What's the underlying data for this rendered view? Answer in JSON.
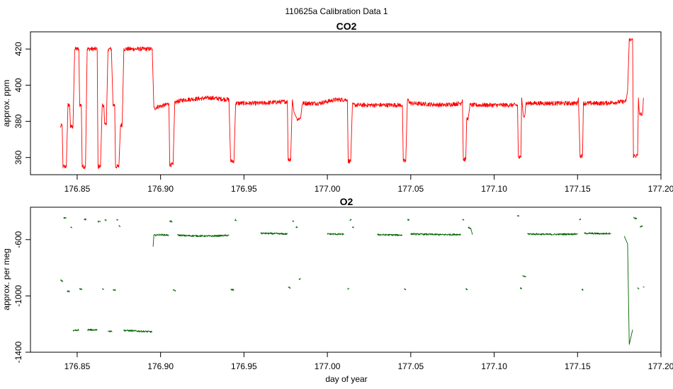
{
  "suptitle": "110625a   Calibration Data 1",
  "colors": {
    "co2": "#ff0000",
    "o2": "#006400"
  },
  "chart_data": [
    {
      "type": "line",
      "title": "CO2",
      "xlabel": "",
      "ylabel": "approx. ppm",
      "xlim": [
        176.822,
        177.2
      ],
      "ylim": [
        350.5,
        429.5
      ],
      "xticks": [
        176.85,
        176.9,
        176.95,
        177.0,
        177.05,
        177.1,
        177.15,
        177.2
      ],
      "xtick_labels": [
        "176.85",
        "176.90",
        "176.95",
        "177.00",
        "177.05",
        "177.10",
        "177.15",
        "177.20"
      ],
      "yticks": [
        360,
        380,
        400,
        420
      ],
      "ytick_labels": [
        "360",
        "380",
        "400",
        "420"
      ],
      "series": [
        {
          "color": "#ff0000",
          "noise": 1.2,
          "segments": [
            [
              [
                176.84,
                377
              ],
              [
                176.841,
                378
              ],
              [
                176.8415,
                355
              ],
              [
                176.8435,
                355
              ],
              [
                176.8445,
                389
              ],
              [
                176.8455,
                389
              ],
              [
                176.846,
                377
              ],
              [
                176.8475,
                377
              ],
              [
                176.8485,
                420
              ],
              [
                176.851,
                420
              ],
              [
                176.8515,
                389
              ],
              [
                176.8525,
                389
              ],
              [
                176.853,
                355
              ],
              [
                176.855,
                355
              ],
              [
                176.856,
                420
              ],
              [
                176.862,
                420
              ],
              [
                176.8625,
                355
              ],
              [
                176.864,
                355
              ],
              [
                176.865,
                389
              ],
              [
                176.866,
                389
              ],
              [
                176.8665,
                378
              ],
              [
                176.8675,
                378
              ],
              [
                176.8685,
                420
              ],
              [
                176.8705,
                420
              ],
              [
                176.8715,
                389
              ],
              [
                176.8725,
                389
              ],
              [
                176.873,
                355
              ],
              [
                176.875,
                355
              ],
              [
                176.876,
                378
              ],
              [
                176.877,
                378
              ],
              [
                176.878,
                420
              ],
              [
                176.895,
                420
              ],
              [
                176.896,
                387
              ],
              [
                176.898,
                388
              ],
              [
                176.903,
                389
              ],
              [
                176.905,
                390
              ],
              [
                176.9055,
                356
              ],
              [
                176.9075,
                356
              ],
              [
                176.9085,
                390
              ],
              [
                176.91,
                391
              ],
              [
                176.915,
                392
              ],
              [
                176.93,
                393
              ],
              [
                176.941,
                392
              ],
              [
                176.942,
                358
              ],
              [
                176.944,
                358
              ],
              [
                176.945,
                390
              ],
              [
                176.96,
                390
              ],
              [
                176.976,
                391
              ],
              [
                176.9765,
                359
              ],
              [
                176.978,
                359
              ],
              [
                176.979,
                392
              ],
              [
                176.98,
                385
              ],
              [
                176.982,
                381
              ],
              [
                176.984,
                382
              ],
              [
                176.985,
                390
              ],
              [
                176.995,
                390
              ],
              [
                177.005,
                392
              ],
              [
                177.012,
                392
              ],
              [
                177.0125,
                358
              ],
              [
                177.014,
                358
              ],
              [
                177.015,
                389
              ],
              [
                177.03,
                389
              ],
              [
                177.045,
                389
              ],
              [
                177.0455,
                358
              ],
              [
                177.047,
                358
              ],
              [
                177.048,
                392
              ],
              [
                177.05,
                390
              ],
              [
                177.07,
                389
              ],
              [
                177.08,
                390
              ],
              [
                177.081,
                392
              ],
              [
                177.0815,
                359
              ],
              [
                177.083,
                359
              ],
              [
                177.0835,
                381
              ],
              [
                177.0845,
                382
              ],
              [
                177.0855,
                389
              ],
              [
                177.1,
                389
              ],
              [
                177.114,
                389
              ],
              [
                177.1145,
                360
              ],
              [
                177.116,
                360
              ],
              [
                177.1165,
                393
              ],
              [
                177.1175,
                383
              ],
              [
                177.1185,
                384
              ],
              [
                177.119,
                390
              ],
              [
                177.135,
                390
              ],
              [
                177.15,
                390
              ],
              [
                177.1505,
                393
              ],
              [
                177.1515,
                361
              ],
              [
                177.153,
                361
              ],
              [
                177.1535,
                390
              ],
              [
                177.165,
                390
              ],
              [
                177.179,
                391
              ],
              [
                177.18,
                397
              ],
              [
                177.181,
                425
              ],
              [
                177.183,
                425
              ],
              [
                177.1835,
                361
              ],
              [
                177.186,
                361
              ],
              [
                177.1865,
                393
              ],
              [
                177.187,
                384
              ],
              [
                177.189,
                384
              ],
              [
                177.1895,
                393
              ]
            ]
          ]
        }
      ]
    },
    {
      "type": "line",
      "title": "O2",
      "xlabel": "day of year",
      "ylabel": "approx. per meg",
      "xlim": [
        176.822,
        177.2
      ],
      "ylim": [
        -1400,
        -370
      ],
      "xticks": [
        176.85,
        176.9,
        176.95,
        177.0,
        177.05,
        177.1,
        177.15,
        177.2
      ],
      "xtick_labels": [
        "176.85",
        "176.90",
        "176.95",
        "177.00",
        "177.05",
        "177.10",
        "177.15",
        "177.20"
      ],
      "yticks": [
        -1400,
        -1000,
        -600
      ],
      "ytick_labels": [
        "-1400",
        "-1000",
        "-600"
      ],
      "series": [
        {
          "color": "#006400",
          "noise": 6,
          "segments": [
            [
              [
                176.84,
                -890
              ],
              [
                176.8415,
                -895
              ]
            ],
            [
              [
                176.842,
                -445
              ],
              [
                176.8435,
                -450
              ]
            ],
            [
              [
                176.844,
                -965
              ],
              [
                176.8455,
                -968
              ]
            ],
            [
              [
                176.846,
                -510
              ],
              [
                176.847,
                -515
              ]
            ],
            [
              [
                176.8475,
                -1245
              ],
              [
                176.851,
                -1242
              ]
            ],
            [
              [
                176.8515,
                -950
              ],
              [
                176.853,
                -955
              ]
            ],
            [
              [
                176.854,
                -455
              ],
              [
                176.8555,
                -458
              ]
            ],
            [
              [
                176.856,
                -1240
              ],
              [
                176.862,
                -1242
              ]
            ],
            [
              [
                176.8625,
                -470
              ],
              [
                176.864,
                -475
              ]
            ],
            [
              [
                176.865,
                -950
              ],
              [
                176.866,
                -955
              ]
            ],
            [
              [
                176.8665,
                -460
              ],
              [
                176.8675,
                -465
              ]
            ],
            [
              [
                176.8685,
                -1250
              ],
              [
                176.871,
                -1252
              ]
            ],
            [
              [
                176.8715,
                -955
              ],
              [
                176.873,
                -958
              ]
            ],
            [
              [
                176.8735,
                -455
              ],
              [
                176.8745,
                -460
              ]
            ],
            [
              [
                176.875,
                -500
              ],
              [
                176.876,
                -505
              ]
            ],
            [
              [
                176.878,
                -1245
              ],
              [
                176.895,
                -1255
              ]
            ],
            [
              [
                176.8955,
                -650
              ],
              [
                176.896,
                -570
              ],
              [
                176.899,
                -565
              ],
              [
                176.905,
                -568
              ]
            ],
            [
              [
                176.9055,
                -470
              ],
              [
                176.907,
                -472
              ]
            ],
            [
              [
                176.9075,
                -960
              ],
              [
                176.909,
                -962
              ]
            ],
            [
              [
                176.91,
                -568
              ],
              [
                176.915,
                -572
              ],
              [
                176.93,
                -575
              ],
              [
                176.941,
                -570
              ]
            ],
            [
              [
                176.942,
                -955
              ],
              [
                176.944,
                -958
              ]
            ],
            [
              [
                176.9445,
                -460
              ],
              [
                176.9455,
                -462
              ]
            ],
            [
              [
                176.96,
                -555
              ],
              [
                176.976,
                -560
              ]
            ],
            [
              [
                176.9765,
                -940
              ],
              [
                176.978,
                -942
              ]
            ],
            [
              [
                176.979,
                -465
              ],
              [
                176.98,
                -470
              ]
            ],
            [
              [
                176.981,
                -510
              ],
              [
                176.982,
                -512
              ]
            ],
            [
              [
                176.983,
                -880
              ],
              [
                176.984,
                -882
              ]
            ],
            [
              [
                177.0,
                -560
              ],
              [
                177.01,
                -562
              ]
            ],
            [
              [
                177.012,
                -950
              ],
              [
                177.013,
                -952
              ]
            ],
            [
              [
                177.0135,
                -460
              ],
              [
                177.0145,
                -462
              ]
            ],
            [
              [
                177.015,
                -510
              ],
              [
                177.016,
                -512
              ]
            ],
            [
              [
                177.03,
                -565
              ],
              [
                177.045,
                -568
              ]
            ],
            [
              [
                177.046,
                -950
              ],
              [
                177.047,
                -952
              ]
            ],
            [
              [
                177.048,
                -458
              ],
              [
                177.049,
                -462
              ]
            ],
            [
              [
                177.05,
                -560
              ],
              [
                177.07,
                -565
              ],
              [
                177.08,
                -563
              ]
            ],
            [
              [
                177.081,
                -455
              ],
              [
                177.082,
                -460
              ]
            ],
            [
              [
                177.083,
                -950
              ],
              [
                177.084,
                -952
              ]
            ],
            [
              [
                177.0845,
                -515
              ],
              [
                177.086,
                -520
              ],
              [
                177.087,
                -565
              ]
            ],
            [
              [
                177.114,
                -430
              ],
              [
                177.115,
                -435
              ]
            ],
            [
              [
                177.1155,
                -945
              ],
              [
                177.1165,
                -950
              ]
            ],
            [
              [
                177.117,
                -860
              ],
              [
                177.119,
                -862
              ]
            ],
            [
              [
                177.12,
                -560
              ],
              [
                177.135,
                -563
              ],
              [
                177.15,
                -560
              ]
            ],
            [
              [
                177.151,
                -455
              ],
              [
                177.152,
                -458
              ]
            ],
            [
              [
                177.1525,
                -955
              ],
              [
                177.1535,
                -958
              ]
            ],
            [
              [
                177.154,
                -555
              ],
              [
                177.165,
                -558
              ],
              [
                177.17,
                -555
              ]
            ],
            [
              [
                177.178,
                -575
              ],
              [
                177.18,
                -630
              ],
              [
                177.181,
                -1345
              ],
              [
                177.183,
                -1240
              ]
            ],
            [
              [
                177.1835,
                -445
              ],
              [
                177.1855,
                -450
              ]
            ],
            [
              [
                177.186,
                -945
              ],
              [
                177.187,
                -948
              ]
            ],
            [
              [
                177.1875,
                -510
              ],
              [
                177.189,
                -505
              ]
            ],
            [
              [
                177.1892,
                -940
              ],
              [
                177.19,
                -940
              ]
            ]
          ]
        }
      ]
    }
  ]
}
